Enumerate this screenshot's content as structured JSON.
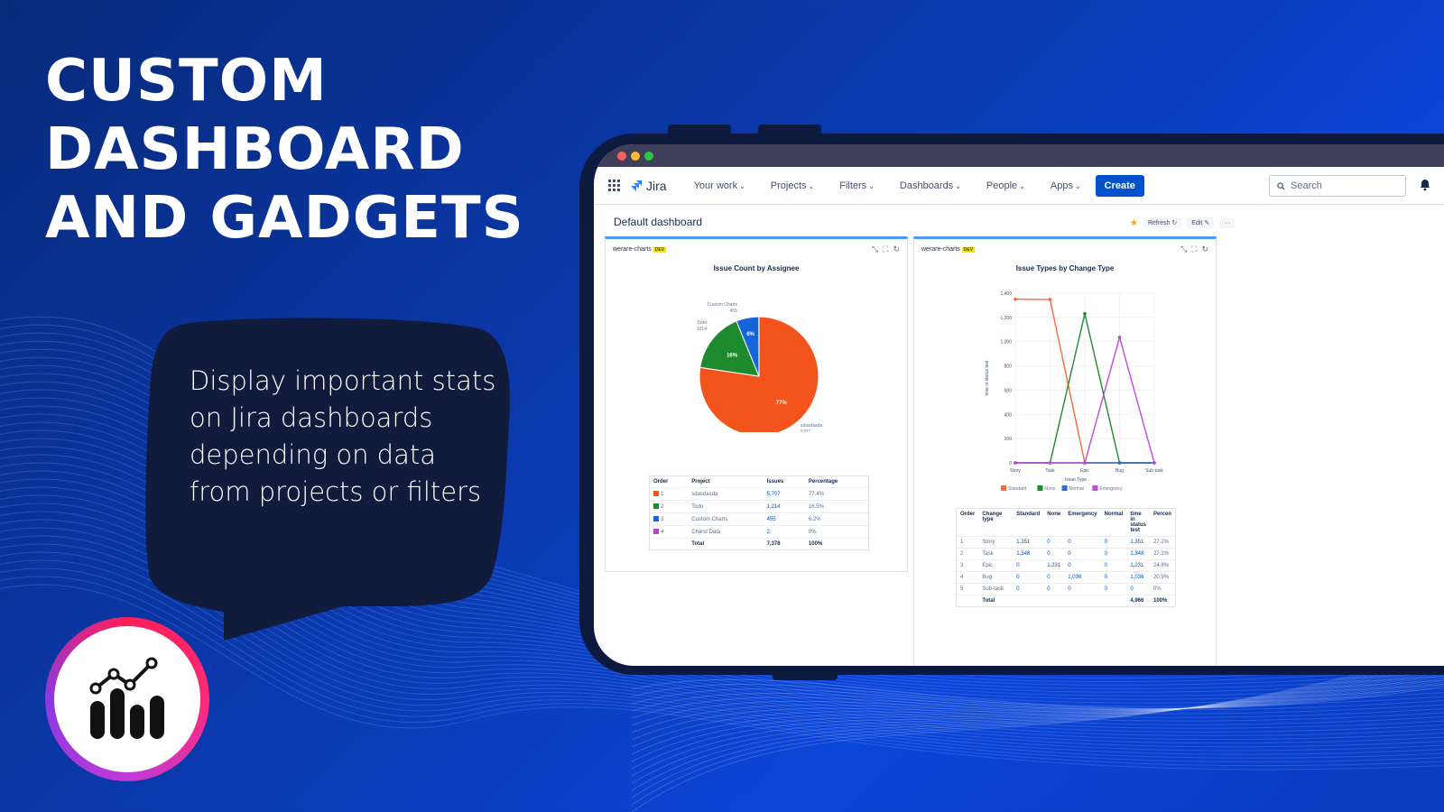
{
  "headline": {
    "line1": "CUSTOM",
    "line2": "DASHBOARD",
    "line3": "AND GADGETS"
  },
  "bubble": {
    "text": "Display important stats on  Jira dashboards depending on data from projects or filters"
  },
  "colors": {
    "accent": "#0052cc",
    "standard": "#f26b3a",
    "none": "#1e8a2e",
    "normal": "#2b6ed0",
    "emergency": "#c24bd6"
  },
  "jira": {
    "product": "Jira",
    "nav": [
      "Your work",
      "Projects",
      "Filters",
      "Dashboards",
      "People",
      "Apps"
    ],
    "create": "Create",
    "search_placeholder": "Search",
    "dashboard_title": "Default dashboard",
    "refresh": "Refresh",
    "edit": "Edit",
    "more": "···"
  },
  "gadget1": {
    "app": "werare-charts",
    "badge": "DEV",
    "title": "Issue Count by Assignee",
    "table": {
      "headers": [
        "Order",
        "Project",
        "Issues",
        "Percentage"
      ],
      "rows": [
        {
          "order": "1",
          "project": "sdasdasda",
          "issues": "5,707",
          "pct": "77.4%",
          "color": "#f2541b"
        },
        {
          "order": "2",
          "project": "Todo",
          "issues": "1,214",
          "pct": "16.5%",
          "color": "#1e8a2e"
        },
        {
          "order": "3",
          "project": "Custom Charts",
          "issues": "455",
          "pct": "6.2%",
          "color": "#1565d8"
        },
        {
          "order": "4",
          "project": "Charst Data",
          "issues": "2",
          "pct": "0%",
          "color": "#b447c8"
        }
      ],
      "total_label": "Total",
      "total_issues": "7,378",
      "total_pct": "100%"
    }
  },
  "gadget2": {
    "app": "werare-charts",
    "badge": "DEV",
    "title": "Issue Types by Change Type",
    "table": {
      "headers": [
        "Order",
        "Change type",
        "Standard",
        "None",
        "Emergency",
        "Normal",
        "time in status test",
        "Percen"
      ],
      "rows": [
        [
          "1",
          "Story",
          "1,351",
          "0",
          "0",
          "0",
          "1,351",
          "27.2%"
        ],
        [
          "2",
          "Task",
          "1,348",
          "0",
          "0",
          "0",
          "1,348",
          "27.1%"
        ],
        [
          "3",
          "Epic",
          "0",
          "1,231",
          "0",
          "0",
          "1,231",
          "24.8%"
        ],
        [
          "4",
          "Bug",
          "0",
          "0",
          "1,036",
          "0",
          "1,036",
          "20.9%"
        ],
        [
          "5",
          "Sub-task",
          "0",
          "0",
          "0",
          "0",
          "0",
          "0%"
        ]
      ],
      "total_label": "Total",
      "total_value": "4,966",
      "total_pct": "100%"
    }
  },
  "chart_data": [
    {
      "type": "pie",
      "title": "Issue Count by Assignee",
      "categories": [
        "sdasdasda",
        "Todo",
        "Custom Charts",
        "Charst Data"
      ],
      "values": [
        5707,
        1214,
        455,
        2
      ],
      "colors": [
        "#f2541b",
        "#1e8a2e",
        "#1565d8",
        "#b447c8"
      ],
      "slice_labels": [
        "77%",
        "16%",
        "6%",
        ""
      ],
      "outer_labels": [
        {
          "name": "sdasdasda",
          "value": "5707"
        },
        {
          "name": "Todo",
          "value": "1214"
        },
        {
          "name": "Custom Charts",
          "value": "455"
        }
      ]
    },
    {
      "type": "line",
      "title": "Issue Types by Change Type",
      "xlabel": "Issue Type",
      "ylabel": "time in status test",
      "categories": [
        "Story",
        "Task",
        "Epic",
        "Bug",
        "Sub-task"
      ],
      "ylim": [
        0,
        1400
      ],
      "yticks": [
        "0",
        "200",
        "400",
        "600",
        "800",
        "1,000",
        "1,200",
        "1,400"
      ],
      "series": [
        {
          "name": "Standard",
          "color": "#f26b3a",
          "values": [
            1351,
            1348,
            0,
            0,
            0
          ]
        },
        {
          "name": "None",
          "color": "#1e8a2e",
          "values": [
            0,
            0,
            1231,
            0,
            0
          ]
        },
        {
          "name": "Normal",
          "color": "#2b6ed0",
          "values": [
            0,
            0,
            0,
            0,
            0
          ]
        },
        {
          "name": "Emergency",
          "color": "#c24bd6",
          "values": [
            0,
            0,
            0,
            1036,
            0
          ]
        }
      ],
      "grid": true,
      "legend": "bottom"
    }
  ]
}
